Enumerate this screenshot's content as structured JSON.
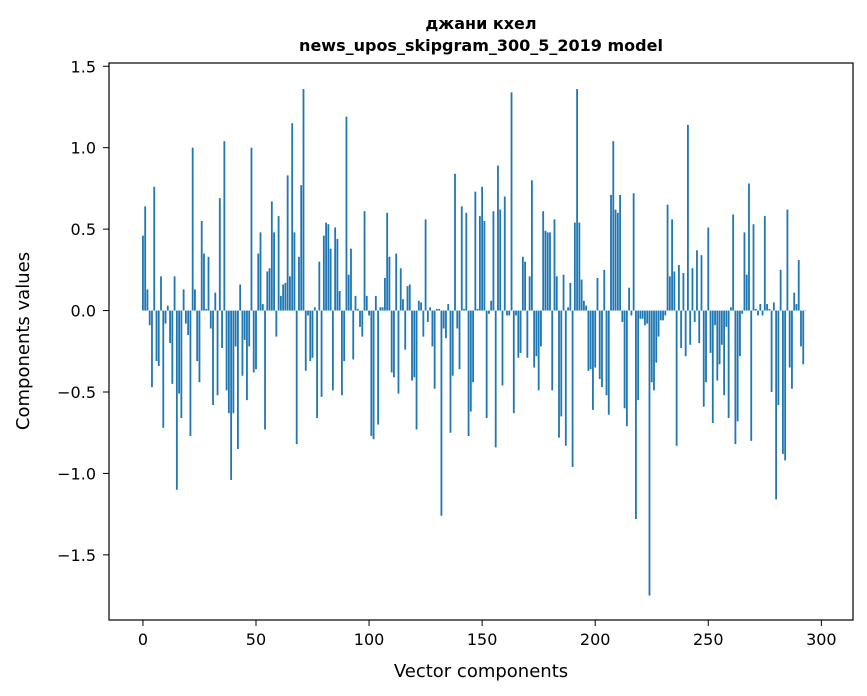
{
  "chart_data": {
    "type": "bar",
    "title_line1": "джани кхел",
    "title_line2": "news_upos_skipgram_300_5_2019 model",
    "xlabel": "Vector components",
    "ylabel": "Components values",
    "xlim": [
      -15,
      314
    ],
    "ylim": [
      -1.9,
      1.52
    ],
    "xticks": [
      0,
      50,
      100,
      150,
      200,
      250,
      300
    ],
    "yticks": [
      -1.5,
      -1.0,
      -0.5,
      0.0,
      0.5,
      1.0,
      1.5
    ],
    "ytick_labels": [
      "−1.5",
      "−1.0",
      "−0.5",
      "0.0",
      "0.5",
      "1.0",
      "1.5"
    ],
    "series_color": "#1f77b4",
    "values": [
      0.46,
      0.64,
      0.13,
      -0.09,
      -0.47,
      0.76,
      -0.31,
      -0.34,
      0.21,
      -0.72,
      -0.08,
      0.03,
      -0.2,
      -0.45,
      0.21,
      -1.1,
      -0.51,
      -0.66,
      0.13,
      -0.08,
      -0.15,
      -0.77,
      1.0,
      0.13,
      -0.31,
      -0.44,
      0.55,
      0.35,
      0.01,
      0.33,
      -0.11,
      -0.58,
      0.11,
      -0.52,
      0.69,
      -0.23,
      1.04,
      -0.49,
      -0.63,
      -1.04,
      -0.63,
      -0.22,
      -0.85,
      0.16,
      -0.4,
      -0.18,
      -0.55,
      -0.22,
      1.0,
      -0.38,
      -0.36,
      0.35,
      0.48,
      0.04,
      -0.73,
      0.24,
      0.26,
      0.67,
      0.48,
      -0.16,
      0.58,
      0.09,
      0.16,
      0.17,
      0.83,
      0.21,
      1.15,
      0.48,
      -0.82,
      0.33,
      0.77,
      1.36,
      -0.37,
      -0.03,
      -0.31,
      -0.29,
      0.02,
      -0.66,
      0.3,
      -0.53,
      0.46,
      0.54,
      0.53,
      0.38,
      -0.49,
      0.51,
      0.44,
      0.12,
      -0.52,
      -0.31,
      1.19,
      0.22,
      0.38,
      -0.3,
      0.09,
      0.01,
      -0.1,
      -0.16,
      0.61,
      0.09,
      -0.03,
      -0.77,
      -0.79,
      0.09,
      -0.7,
      0.02,
      0.02,
      0.2,
      0.6,
      0.33,
      -0.38,
      -0.41,
      0.35,
      -0.51,
      0.26,
      0.07,
      -0.24,
      0.15,
      0.16,
      -0.43,
      -0.41,
      -0.73,
      0.06,
      0.05,
      -0.16,
      0.56,
      -0.07,
      0.02,
      -0.22,
      -0.48,
      0.01,
      0.01,
      -1.26,
      -0.11,
      -0.17,
      0.04,
      -0.75,
      -0.4,
      0.84,
      -0.11,
      -0.36,
      0.64,
      0.01,
      0.6,
      -0.77,
      -0.62,
      -0.44,
      0.73,
      0.01,
      0.58,
      0.76,
      0.55,
      -0.66,
      -0.02,
      0.06,
      0.61,
      -0.84,
      0.89,
      0.62,
      -0.46,
      0.7,
      -0.03,
      -0.03,
      1.34,
      -0.63,
      -0.03,
      -0.29,
      -0.26,
      0.33,
      0.3,
      -0.29,
      0.21,
      0.8,
      -0.35,
      -0.28,
      -0.49,
      -0.22,
      0.61,
      0.49,
      0.48,
      0.48,
      -0.49,
      0.56,
      0.21,
      -0.78,
      -0.65,
      0.22,
      -0.83,
      0.02,
      0.17,
      -0.96,
      0.54,
      1.36,
      0.54,
      0.19,
      0.06,
      0.03,
      -0.37,
      -0.36,
      -0.61,
      -0.35,
      0.2,
      -0.42,
      -0.47,
      0.25,
      -0.52,
      -0.64,
      0.71,
      1.04,
      0.62,
      0.6,
      0.71,
      -0.07,
      -0.6,
      -0.71,
      0.14,
      -0.03,
      0.72,
      -1.28,
      -0.55,
      -0.05,
      -0.05,
      -0.09,
      -0.08,
      -1.75,
      -0.44,
      -0.49,
      -0.32,
      -0.16,
      -0.06,
      -0.06,
      -0.03,
      0.65,
      0.21,
      0.56,
      0.24,
      -0.83,
      0.28,
      -0.23,
      0.23,
      -0.28,
      1.14,
      -0.21,
      0.26,
      -0.07,
      0.37,
      -0.2,
      0.34,
      -0.59,
      -0.44,
      0.51,
      -0.26,
      -0.69,
      -0.09,
      -0.43,
      -0.33,
      -0.21,
      -0.52,
      -0.1,
      -0.66,
      0.02,
      0.59,
      -0.82,
      -0.68,
      -0.28,
      -0.02,
      0.48,
      0.22,
      0.78,
      -0.8,
      0.53,
      0.01,
      -0.03,
      0.04,
      -0.03,
      0.58,
      0.04,
      0.01,
      -0.5,
      0.05,
      -1.16,
      -0.58,
      0.25,
      -0.88,
      -0.92,
      0.62,
      -0.35,
      -0.48,
      0.11,
      0.04,
      0.31,
      -0.22,
      -0.33,
      0.0
    ]
  }
}
